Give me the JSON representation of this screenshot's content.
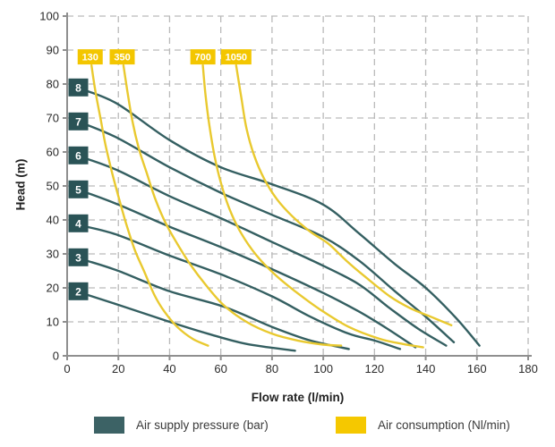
{
  "chart_data": {
    "type": "line",
    "title": "",
    "xlabel": "Flow rate (l/min)",
    "ylabel": "Head (m)",
    "xlim": [
      0,
      180
    ],
    "ylim": [
      0,
      100
    ],
    "x_ticks": [
      0,
      20,
      40,
      60,
      80,
      100,
      120,
      140,
      160,
      180
    ],
    "y_ticks": [
      0,
      10,
      20,
      30,
      40,
      50,
      60,
      70,
      80,
      90,
      100
    ],
    "grid": "dashed",
    "series": [
      {
        "name": "Air supply pressure (bar)",
        "color": "#345f61",
        "label_box_color": "#2a5356",
        "curves": [
          {
            "label": "2",
            "points": [
              [
                7.7,
                18
              ],
              [
                20,
                15
              ],
              [
                40,
                10
              ],
              [
                55,
                6.5
              ],
              [
                70,
                3.5
              ],
              [
                89,
                1.5
              ]
            ]
          },
          {
            "label": "3",
            "points": [
              [
                7.7,
                28
              ],
              [
                20,
                25
              ],
              [
                40,
                19
              ],
              [
                61,
                14.5
              ],
              [
                80,
                8.5
              ],
              [
                95,
                4.5
              ],
              [
                110,
                2
              ]
            ]
          },
          {
            "label": "4",
            "points": [
              [
                7.7,
                38
              ],
              [
                20,
                35.5
              ],
              [
                40,
                29.5
              ],
              [
                60,
                24
              ],
              [
                80,
                17.5
              ],
              [
                95,
                11.5
              ],
              [
                110,
                6.5
              ],
              [
                120,
                4.5
              ],
              [
                130,
                2
              ]
            ]
          },
          {
            "label": "5",
            "points": [
              [
                7.7,
                48
              ],
              [
                20,
                44.5
              ],
              [
                40,
                38
              ],
              [
                60,
                32
              ],
              [
                80,
                25.5
              ],
              [
                100,
                18.5
              ],
              [
                114,
                13
              ],
              [
                125,
                8
              ],
              [
                136,
                2.5
              ]
            ]
          },
          {
            "label": "6",
            "points": [
              [
                7.7,
                58
              ],
              [
                20,
                54.5
              ],
              [
                40,
                47
              ],
              [
                60,
                40.5
              ],
              [
                80,
                33.5
              ],
              [
                100,
                26.5
              ],
              [
                114,
                21
              ],
              [
                126,
                14
              ],
              [
                137,
                8
              ],
              [
                148,
                3
              ]
            ]
          },
          {
            "label": "7",
            "points": [
              [
                7.7,
                68
              ],
              [
                20,
                64
              ],
              [
                40,
                55.5
              ],
              [
                60,
                48
              ],
              [
                80,
                41.5
              ],
              [
                100,
                35
              ],
              [
                114,
                28
              ],
              [
                128,
                19
              ],
              [
                140,
                11.5
              ],
              [
                151,
                4
              ]
            ]
          },
          {
            "label": "8",
            "points": [
              [
                7.7,
                78
              ],
              [
                20,
                74
              ],
              [
                40,
                63.5
              ],
              [
                60,
                55.5
              ],
              [
                80,
                50.5
              ],
              [
                100,
                44.5
              ],
              [
                114,
                36
              ],
              [
                128,
                27
              ],
              [
                140,
                20
              ],
              [
                152,
                11
              ],
              [
                161,
                3
              ]
            ]
          }
        ]
      },
      {
        "name": "Air consumption (Nl/min)",
        "color": "#e9c92f",
        "label_box_color": "#f3c600",
        "curves": [
          {
            "label": "130",
            "label_x": 9,
            "points": [
              [
                9.5,
                85.5
              ],
              [
                11,
                78
              ],
              [
                13,
                70
              ],
              [
                15,
                62
              ],
              [
                17.5,
                54
              ],
              [
                20,
                47
              ],
              [
                23,
                39
              ],
              [
                26.5,
                31
              ],
              [
                30,
                25
              ],
              [
                34,
                18
              ],
              [
                38,
                13
              ],
              [
                43,
                8.5
              ],
              [
                49,
                5
              ],
              [
                55,
                3
              ]
            ]
          },
          {
            "label": "350",
            "label_x": 21.5,
            "points": [
              [
                22,
                85.5
              ],
              [
                23.5,
                78
              ],
              [
                25.5,
                69
              ],
              [
                28,
                61
              ],
              [
                31,
                54
              ],
              [
                34.5,
                46
              ],
              [
                38.5,
                39
              ],
              [
                43,
                33
              ],
              [
                48,
                27
              ],
              [
                54,
                21
              ],
              [
                61,
                15
              ],
              [
                70,
                10
              ],
              [
                80,
                6.5
              ],
              [
                90,
                4.5
              ],
              [
                100,
                3.3
              ],
              [
                107,
                3
              ]
            ]
          },
          {
            "label": "700",
            "label_x": 53,
            "points": [
              [
                53,
                85.5
              ],
              [
                54,
                77
              ],
              [
                55.5,
                68
              ],
              [
                57.5,
                59
              ],
              [
                60,
                51
              ],
              [
                63.5,
                43
              ],
              [
                68,
                36
              ],
              [
                74,
                29.5
              ],
              [
                81,
                24
              ],
              [
                89,
                19
              ],
              [
                99,
                13.5
              ],
              [
                110,
                8.5
              ],
              [
                122,
                5
              ],
              [
                131,
                3.5
              ],
              [
                139,
                2.5
              ]
            ]
          },
          {
            "label": "1050",
            "label_x": 66,
            "points": [
              [
                66,
                85.5
              ],
              [
                68,
                76
              ],
              [
                70,
                67
              ],
              [
                73,
                59
              ],
              [
                77,
                52
              ],
              [
                82,
                46
              ],
              [
                88,
                41
              ],
              [
                95,
                36.5
              ],
              [
                102,
                33
              ],
              [
                109,
                28
              ],
              [
                116,
                23.5
              ],
              [
                126,
                17.5
              ],
              [
                134,
                14
              ],
              [
                142,
                11.5
              ],
              [
                150,
                9
              ]
            ]
          }
        ]
      }
    ],
    "consumption_label_y": 88,
    "legend": [
      {
        "label": "Air supply pressure (bar)",
        "color": "#3c6265"
      },
      {
        "label": "Air consumption (Nl/min)",
        "color": "#f5c800"
      }
    ]
  },
  "colors": {
    "grid": "#bababa",
    "axis": "#8f8f8f",
    "tick_text": "#2b2b2b",
    "box_text": "#ffffff",
    "background": "#ffffff"
  }
}
